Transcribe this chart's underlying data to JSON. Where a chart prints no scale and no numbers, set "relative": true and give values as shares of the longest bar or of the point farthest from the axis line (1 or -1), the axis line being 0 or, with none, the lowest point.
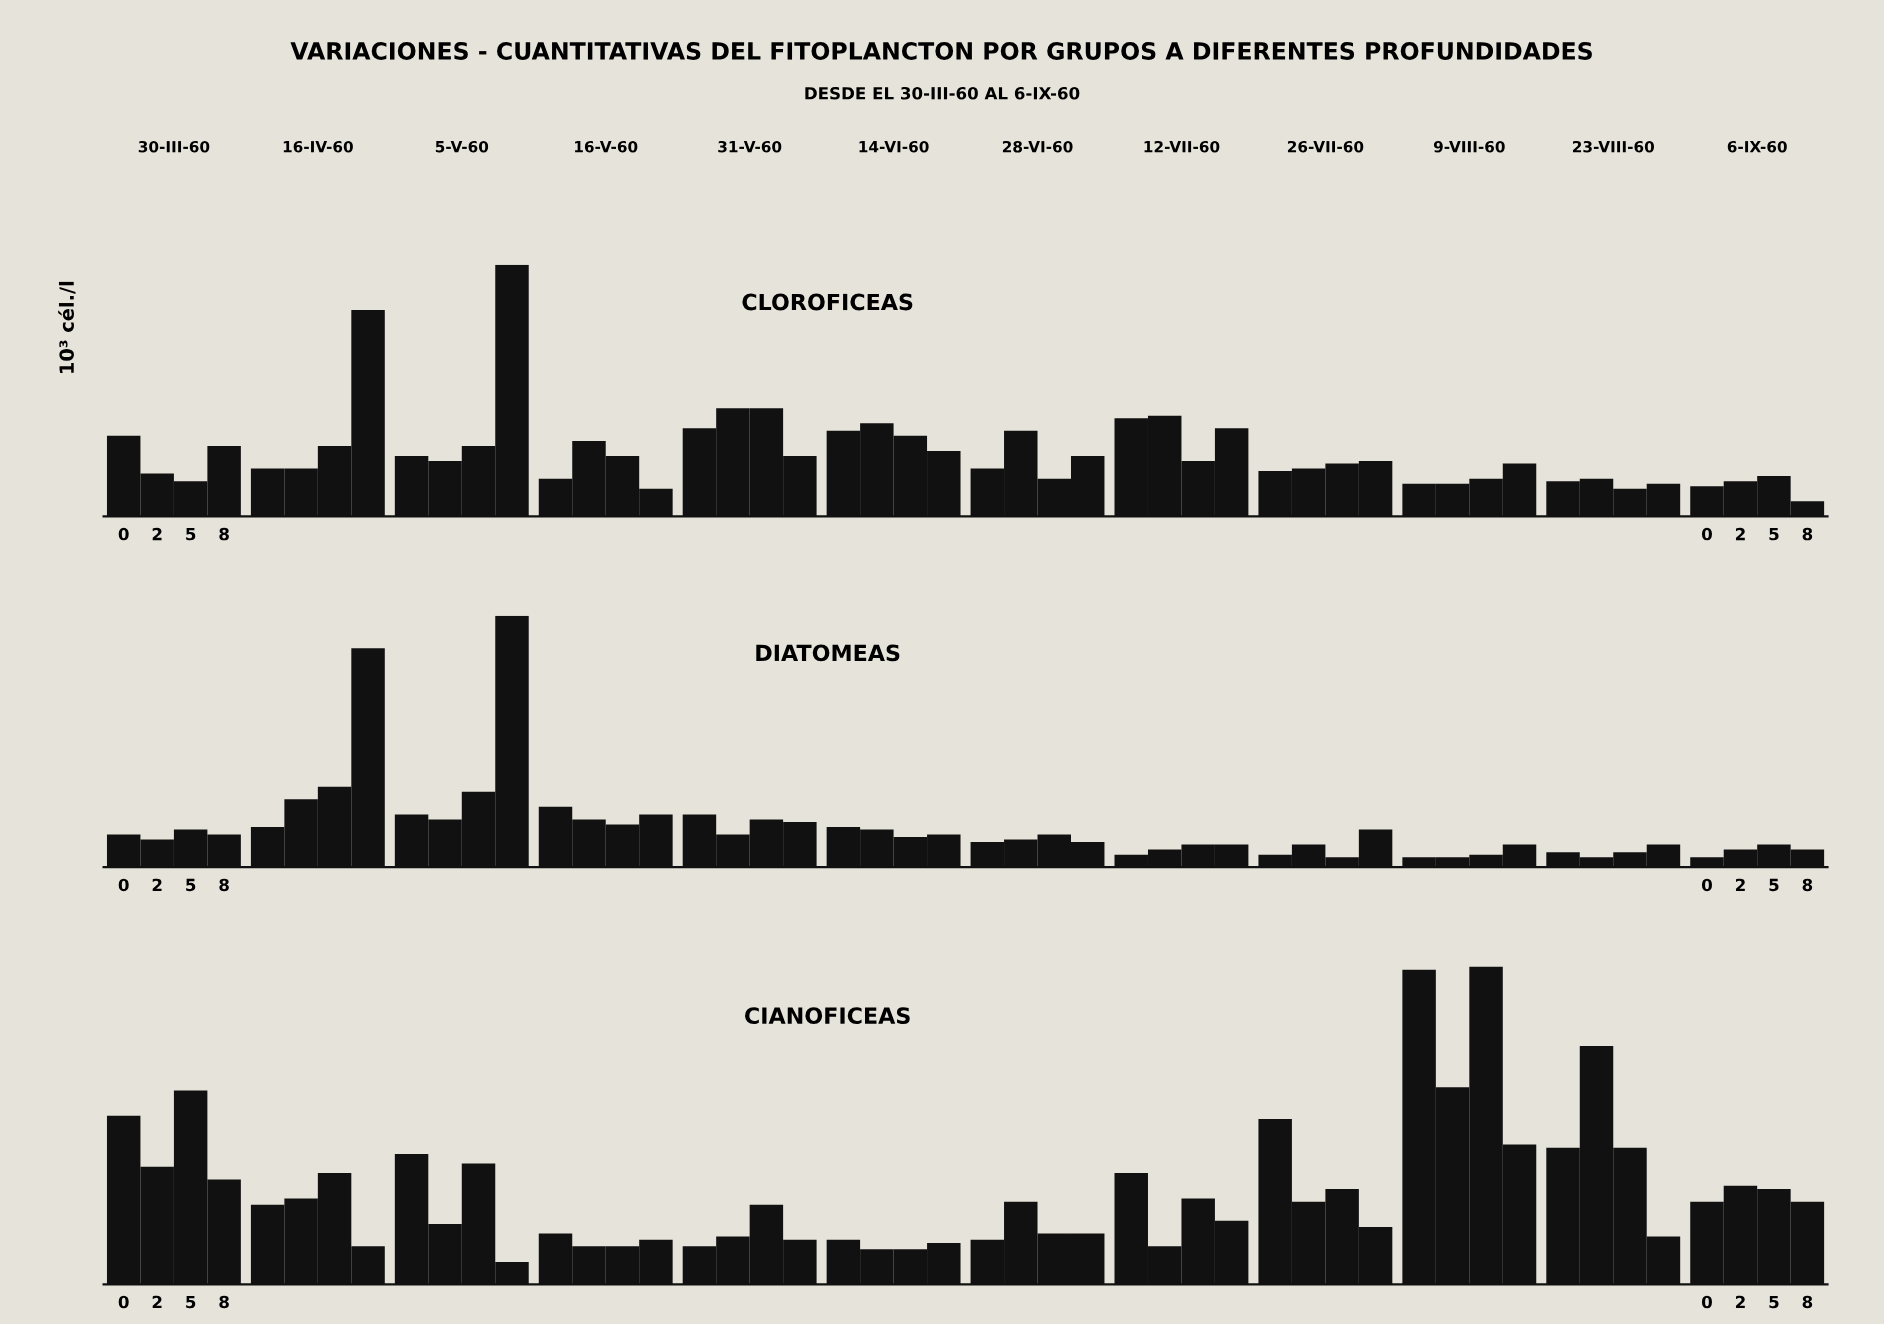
{
  "chart_data": [
    {
      "type": "bar",
      "relative": true,
      "title": "CLOROFICEAS",
      "ylabel": "10³ cél./l",
      "color": "#111111",
      "categories": [
        "0",
        "2",
        "5",
        "8",
        null,
        null,
        null,
        null,
        null,
        null,
        null,
        null,
        null,
        null,
        null,
        null,
        null,
        null,
        null,
        null,
        null,
        null,
        null,
        null,
        null,
        null,
        null,
        null,
        null,
        null,
        null,
        null,
        null,
        null,
        null,
        null,
        null,
        null,
        null,
        null,
        null,
        null,
        null,
        null,
        "0",
        "2",
        "5",
        "8"
      ],
      "values": [
        0.32,
        0.17,
        0.14,
        0.28,
        0.19,
        0.19,
        0.28,
        0.82,
        0.24,
        0.22,
        0.28,
        1.0,
        0.15,
        0.3,
        0.24,
        0.11,
        0.35,
        0.43,
        0.43,
        0.24,
        0.34,
        0.37,
        0.32,
        0.26,
        0.19,
        0.34,
        0.15,
        0.24,
        0.39,
        0.4,
        0.22,
        0.35,
        0.18,
        0.19,
        0.21,
        0.22,
        0.13,
        0.13,
        0.15,
        0.21,
        0.14,
        0.15,
        0.11,
        0.13,
        0.12,
        0.14,
        0.16,
        0.06
      ],
      "annotations": [
        "VARIACIONES - CUANTITATIVAS DEL FITOPLANCTON POR GRUPOS A DIFERENTES PROFUNDIDADES",
        "DESDE EL 30-III-60 AL 6-IX-60",
        "30-III-60",
        "16-IV-60",
        "5-V-60",
        "16-V-60",
        "31-V-60",
        "14-VI-60",
        "28-VI-60",
        "12-VII-60",
        "26-VII-60",
        "9-VIII-60",
        "23-VIII-60",
        "6-IX-60"
      ]
    },
    {
      "type": "bar",
      "relative": true,
      "title": "DIATOMEAS",
      "color": "#111111",
      "categories": [
        "0",
        "2",
        "5",
        "8",
        null,
        null,
        null,
        null,
        null,
        null,
        null,
        null,
        null,
        null,
        null,
        null,
        null,
        null,
        null,
        null,
        null,
        null,
        null,
        null,
        null,
        null,
        null,
        null,
        null,
        null,
        null,
        null,
        null,
        null,
        null,
        null,
        null,
        null,
        null,
        null,
        null,
        null,
        null,
        null,
        "0",
        "2",
        "5",
        "8"
      ],
      "values": [
        0.13,
        0.11,
        0.15,
        0.13,
        0.16,
        0.27,
        0.32,
        0.87,
        0.21,
        0.19,
        0.3,
        1.0,
        0.24,
        0.19,
        0.17,
        0.21,
        0.21,
        0.13,
        0.19,
        0.18,
        0.16,
        0.15,
        0.12,
        0.13,
        0.1,
        0.11,
        0.13,
        0.1,
        0.05,
        0.07,
        0.09,
        0.09,
        0.05,
        0.09,
        0.04,
        0.15,
        0.04,
        0.04,
        0.05,
        0.09,
        0.06,
        0.04,
        0.06,
        0.09,
        0.04,
        0.07,
        0.09,
        0.07
      ]
    },
    {
      "type": "bar",
      "relative": true,
      "title": "CIANOFICEAS",
      "color": "#111111",
      "categories": [
        "0",
        "2",
        "5",
        "8",
        null,
        null,
        null,
        null,
        null,
        null,
        null,
        null,
        null,
        null,
        null,
        null,
        null,
        null,
        null,
        null,
        null,
        null,
        null,
        null,
        null,
        null,
        null,
        null,
        null,
        null,
        null,
        null,
        null,
        null,
        null,
        null,
        null,
        null,
        null,
        null,
        null,
        null,
        null,
        null,
        "0",
        "2",
        "5",
        "8"
      ],
      "values": [
        0.53,
        0.37,
        0.61,
        0.33,
        0.25,
        0.27,
        0.35,
        0.12,
        0.41,
        0.19,
        0.38,
        0.07,
        0.16,
        0.12,
        0.12,
        0.14,
        0.12,
        0.15,
        0.25,
        0.14,
        0.14,
        0.11,
        0.11,
        0.13,
        0.14,
        0.26,
        0.16,
        0.16,
        0.35,
        0.12,
        0.27,
        0.2,
        0.52,
        0.26,
        0.3,
        0.18,
        0.99,
        0.62,
        1.0,
        0.44,
        0.43,
        0.75,
        0.43,
        0.15,
        0.26,
        0.31,
        0.3,
        0.26
      ]
    }
  ]
}
